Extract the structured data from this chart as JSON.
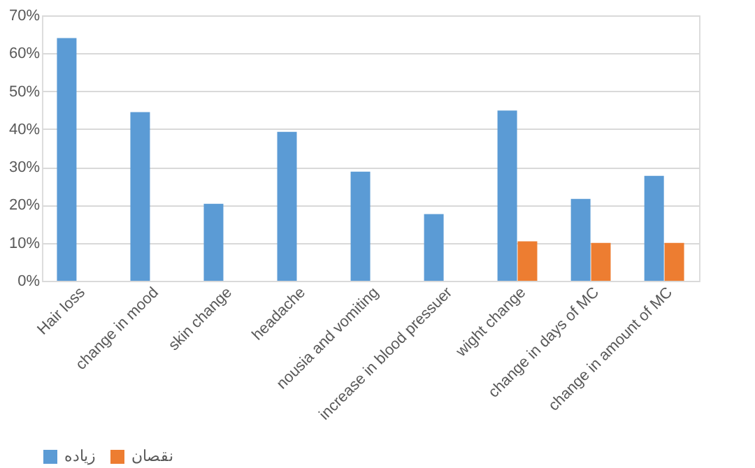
{
  "chart_data": {
    "type": "bar",
    "categories": [
      "Hair loss",
      "change in mood",
      "skin change",
      "headache",
      "nousia and vomiting",
      "increase in blood pressuer",
      "wight change",
      "change in days of MC",
      "change in amount of MC"
    ],
    "series": [
      {
        "name": "زیاده",
        "color": "#5b9bd5",
        "values": [
          64,
          44.5,
          20.3,
          39.3,
          28.8,
          17.6,
          44.9,
          21.6,
          27.7
        ]
      },
      {
        "name": "نقصان",
        "color": "#ed7d31",
        "values": [
          null,
          null,
          null,
          null,
          null,
          null,
          10.4,
          10,
          10
        ]
      }
    ],
    "ylim": [
      0,
      70
    ],
    "yticks": [
      {
        "value": 0,
        "label": "0%"
      },
      {
        "value": 10,
        "label": "10%"
      },
      {
        "value": 20,
        "label": "20%"
      },
      {
        "value": 30,
        "label": "30%"
      },
      {
        "value": 40,
        "label": "40%"
      },
      {
        "value": 50,
        "label": "50%"
      },
      {
        "value": 60,
        "label": "60%"
      },
      {
        "value": 70,
        "label": "70%"
      }
    ],
    "grid": "y",
    "legend": "bottom"
  }
}
